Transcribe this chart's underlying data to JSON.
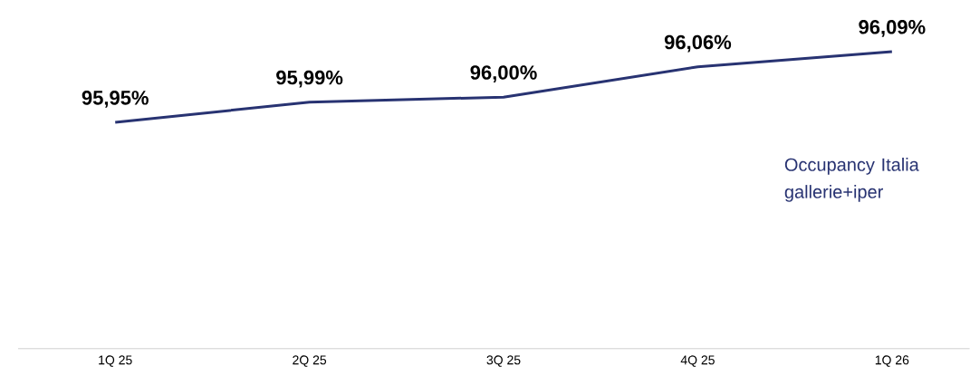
{
  "chart_data": {
    "type": "line",
    "categories": [
      "1Q 25",
      "2Q 25",
      "3Q 25",
      "4Q 25",
      "1Q 26"
    ],
    "series": [
      {
        "name": "Occupancy Italia gallerie+iper",
        "color": "#283372",
        "values": [
          95.95,
          95.99,
          96.0,
          96.06,
          96.09
        ],
        "value_labels": [
          "95,95%",
          "95,99%",
          "96,00%",
          "96,06%",
          "96,09%"
        ]
      }
    ],
    "tick_labels": "x"
  }
}
